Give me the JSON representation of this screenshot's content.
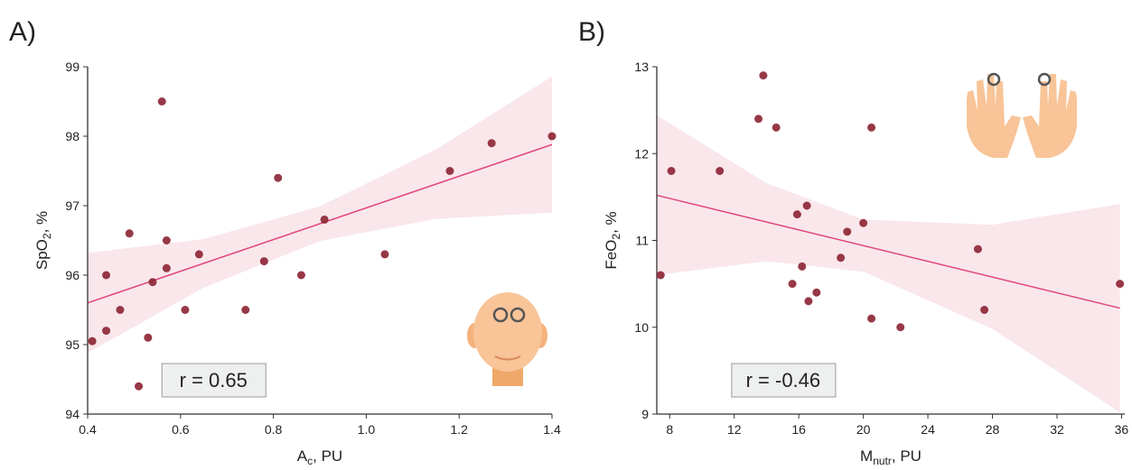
{
  "chart_data": [
    {
      "type": "scatter",
      "panel_label": "A)",
      "xlabel": [
        "A",
        "c",
        ", PU"
      ],
      "ylabel": [
        "SpO",
        "2",
        ", %"
      ],
      "xlim": [
        0.4,
        1.4
      ],
      "ylim": [
        94,
        99
      ],
      "xticks": [
        0.4,
        0.6,
        0.8,
        {
          "value": 1,
          "label": "1.0"
        },
        1.2,
        1.4
      ],
      "yticks": [
        94,
        95,
        96,
        97,
        98,
        99
      ],
      "color": "#8c2233",
      "line_color": "#e0457b",
      "band_color": "#f7dde2",
      "x": [
        0.41,
        0.44,
        0.44,
        0.47,
        0.49,
        0.51,
        0.53,
        0.54,
        0.56,
        0.57,
        0.57,
        0.61,
        0.64,
        0.74,
        0.78,
        0.81,
        0.86,
        0.91,
        1.04,
        1.18,
        1.27,
        1.4
      ],
      "y": [
        95.05,
        96.0,
        95.2,
        95.5,
        96.6,
        94.4,
        95.1,
        95.9,
        98.5,
        96.5,
        96.1,
        95.5,
        96.3,
        95.5,
        96.2,
        97.4,
        96.0,
        96.8,
        96.3,
        97.5,
        97.9,
        98.0
      ],
      "fit": {
        "x": [
          0.4,
          1.4
        ],
        "y": [
          95.6,
          97.88
        ]
      },
      "band": {
        "x": [
          0.4,
          0.65,
          0.9,
          1.15,
          1.4
        ],
        "upper": [
          96.32,
          96.52,
          96.99,
          97.81,
          98.86
        ],
        "lower": [
          94.88,
          95.82,
          96.49,
          96.81,
          96.9
        ]
      },
      "annotation": "r = 0.65"
    },
    {
      "type": "scatter",
      "panel_label": "B)",
      "xlabel": [
        "M",
        "nutr",
        ", PU"
      ],
      "ylabel": [
        "FeO",
        "2",
        ", %"
      ],
      "xlim": [
        7.2,
        36.2
      ],
      "ylim": [
        9,
        13
      ],
      "xticks": [
        8,
        12,
        16,
        20,
        24,
        28,
        32,
        36
      ],
      "yticks": [
        9,
        10,
        11,
        12,
        13
      ],
      "color": "#8c2233",
      "line_color": "#e0457b",
      "band_color": "#f7dde2",
      "x": [
        7.44,
        8.1,
        11.1,
        13.5,
        13.8,
        14.6,
        15.6,
        15.9,
        16.2,
        16.5,
        16.6,
        17.1,
        18.6,
        19.0,
        20.0,
        20.5,
        20.5,
        22.3,
        27.1,
        27.5,
        35.9
      ],
      "y": [
        10.6,
        11.8,
        11.8,
        12.4,
        12.9,
        12.3,
        10.5,
        11.3,
        10.7,
        11.4,
        10.3,
        10.4,
        10.8,
        11.1,
        11.2,
        12.3,
        10.1,
        10.0,
        10.9,
        10.2,
        10.5
      ],
      "fit": {
        "x": [
          7.2,
          35.9
        ],
        "y": [
          11.52,
          10.22
        ]
      },
      "band": {
        "x": [
          7.2,
          14,
          20,
          28,
          35.9
        ],
        "upper": [
          12.44,
          11.66,
          11.24,
          11.18,
          11.42
        ],
        "lower": [
          10.6,
          10.76,
          10.64,
          9.98,
          9.02
        ]
      },
      "annotation": "r = -0.46"
    }
  ]
}
